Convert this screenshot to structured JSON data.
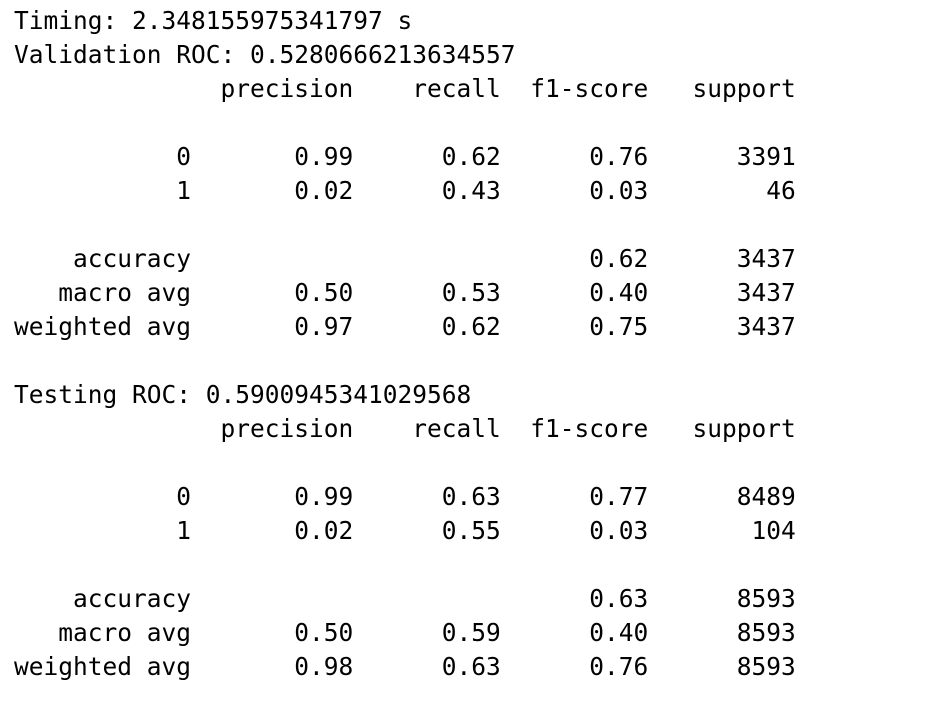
{
  "output": {
    "lines": [
      "Timing: 2.348155975341797 s",
      "Validation ROC: 0.5280666213634557",
      "              precision    recall  f1-score   support",
      "",
      "           0       0.99      0.62      0.76      3391",
      "           1       0.02      0.43      0.03        46",
      "",
      "    accuracy                           0.62      3437",
      "   macro avg       0.50      0.53      0.40      3437",
      "weighted avg       0.97      0.62      0.75      3437",
      "",
      "Testing ROC: 0.5900945341029568",
      "              precision    recall  f1-score   support",
      "",
      "           0       0.99      0.63      0.77      8489",
      "           1       0.02      0.55      0.03       104",
      "",
      "    accuracy                           0.63      8593",
      "   macro avg       0.50      0.59      0.40      8593",
      "weighted avg       0.98      0.63      0.76      8593"
    ]
  }
}
